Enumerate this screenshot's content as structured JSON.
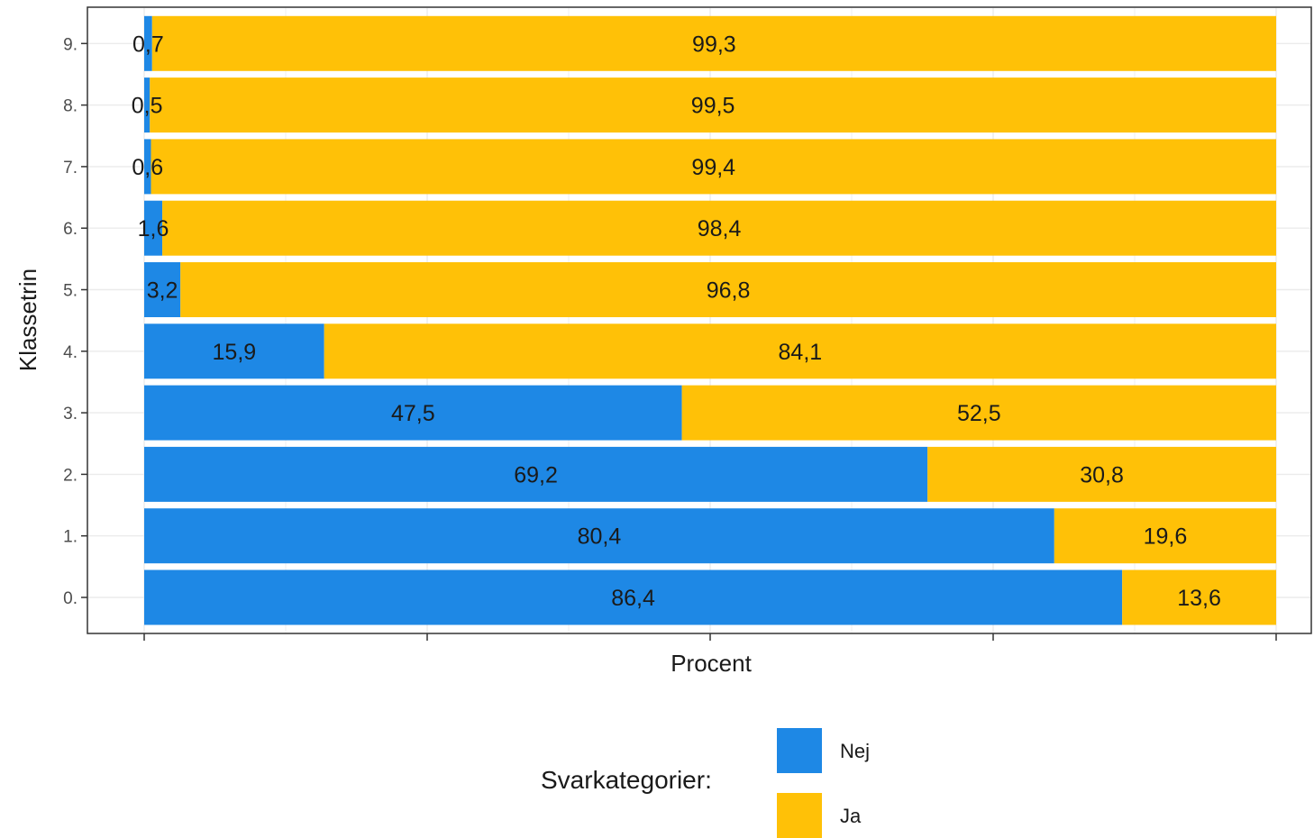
{
  "chart_data": {
    "type": "bar",
    "orientation": "horizontal",
    "stacked": true,
    "xlabel": "Procent",
    "ylabel": "Klassetrin",
    "xlim": [
      0,
      100
    ],
    "categories": [
      "0.",
      "1.",
      "2.",
      "3.",
      "4.",
      "5.",
      "6.",
      "7.",
      "8.",
      "9."
    ],
    "series": [
      {
        "name": "Nej",
        "color": "#1e88e5",
        "values": [
          86.4,
          80.4,
          69.2,
          47.5,
          15.9,
          3.2,
          1.6,
          0.6,
          0.5,
          0.7
        ],
        "labels": [
          "86,4",
          "80,4",
          "69,2",
          "47,5",
          "15,9",
          "3,2",
          "1,6",
          "0,6",
          "0,5",
          "0,7"
        ]
      },
      {
        "name": "Ja",
        "color": "#ffc107",
        "values": [
          13.6,
          19.6,
          30.8,
          52.5,
          84.1,
          96.8,
          98.4,
          99.4,
          99.5,
          99.3
        ],
        "labels": [
          "13,6",
          "19,6",
          "30,8",
          "52,5",
          "84,1",
          "96,8",
          "98,4",
          "99,4",
          "99,5",
          "99,3"
        ]
      }
    ],
    "grid": true,
    "legend": {
      "title": "Svarkategorier:",
      "position": "bottom"
    }
  }
}
